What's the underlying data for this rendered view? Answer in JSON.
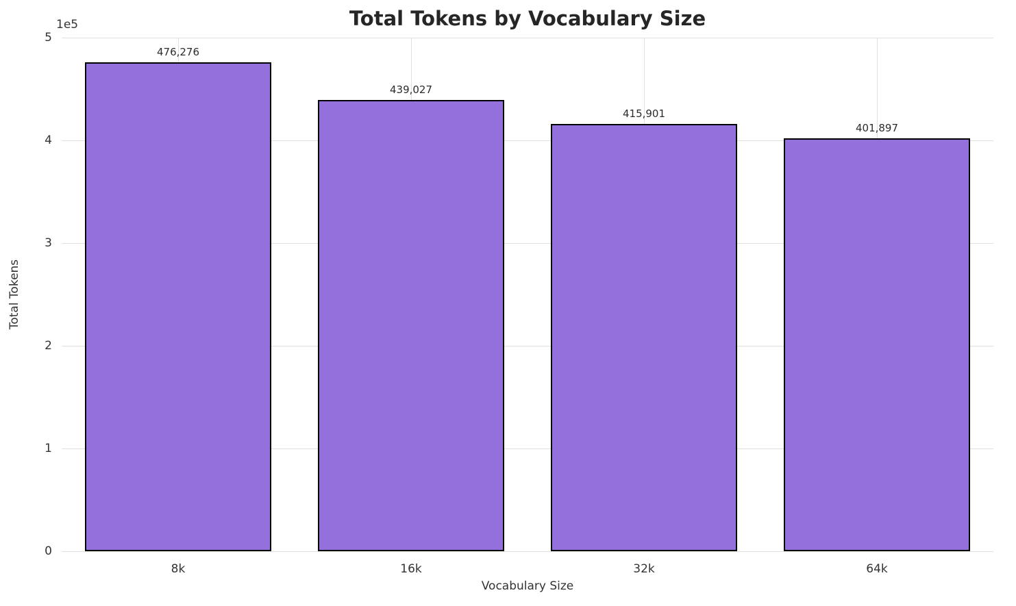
{
  "chart_data": {
    "type": "bar",
    "title": "Total Tokens by Vocabulary Size",
    "xlabel": "Vocabulary Size",
    "ylabel": "Total Tokens",
    "y_offset_label": "1e5",
    "categories": [
      "8k",
      "16k",
      "32k",
      "64k"
    ],
    "values": [
      476276,
      439027,
      415901,
      401897
    ],
    "value_labels": [
      "476,276",
      "439,027",
      "415,901",
      "401,897"
    ],
    "ylim": [
      0,
      500000
    ],
    "ytick_values": [
      0,
      100000,
      200000,
      300000,
      400000,
      500000
    ],
    "ytick_labels": [
      "0",
      "1",
      "2",
      "3",
      "4",
      "5"
    ],
    "grid": true,
    "legend": false,
    "bar_color": "#9370DB",
    "bar_edge_color": "#000000",
    "grid_color": "#e0e0e0",
    "background_color": "#ffffff",
    "title_color": "#262626",
    "text_color": "#333333",
    "bar_width_fraction": 0.8
  }
}
